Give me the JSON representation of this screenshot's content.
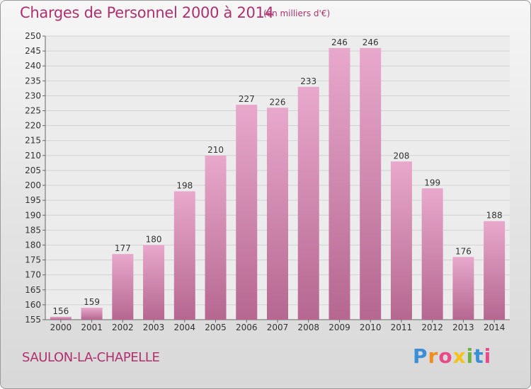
{
  "header": {
    "title": "Charges de Personnel 2000 à 2014",
    "unit_note": "(en milliers d'€)"
  },
  "footer": {
    "commune": "SAULON-LA-CHAPELLE",
    "logo_text": "Proxiti"
  },
  "colors": {
    "bar_light": "#e8a8cc",
    "bar_dark": "#b56790",
    "text_accent": "#b0306d"
  },
  "chart_data": {
    "type": "bar",
    "title": "Charges de Personnel 2000 à 2014",
    "subtitle": "(en milliers d'€)",
    "xlabel": "",
    "ylabel": "",
    "categories": [
      "2000",
      "2001",
      "2002",
      "2003",
      "2004",
      "2005",
      "2006",
      "2007",
      "2008",
      "2009",
      "2010",
      "2011",
      "2012",
      "2013",
      "2014"
    ],
    "values": [
      156,
      159,
      177,
      180,
      198,
      210,
      227,
      226,
      233,
      246,
      246,
      208,
      199,
      176,
      188
    ],
    "ylim": [
      155,
      250
    ],
    "yticks": [
      155,
      160,
      165,
      170,
      175,
      180,
      185,
      190,
      195,
      200,
      205,
      210,
      215,
      220,
      225,
      230,
      235,
      240,
      245,
      250
    ],
    "grid": true,
    "legend": "none"
  }
}
